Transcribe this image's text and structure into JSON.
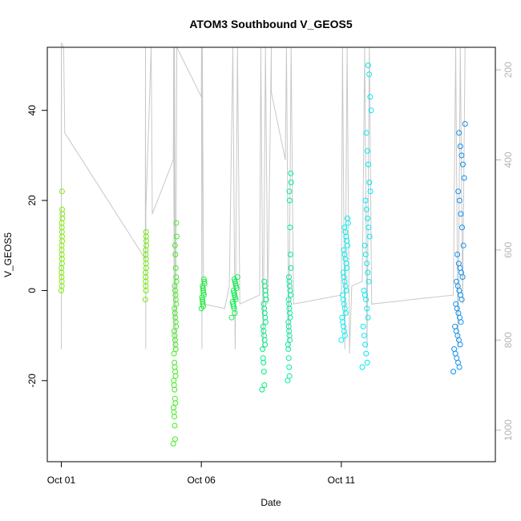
{
  "chart_data": {
    "type": "scatter",
    "title": "ATOM3 Southbound V_GEOS5",
    "xlabel": "Date",
    "ylabel": "V_GEOS5",
    "x_axis": {
      "type": "date",
      "range": [
        "2016-09-30T12:00",
        "2016-10-16T12:00"
      ],
      "ticks": [
        {
          "date": "2016-10-01",
          "label": "Oct 01"
        },
        {
          "date": "2016-10-06",
          "label": "Oct 06"
        },
        {
          "date": "2016-10-11",
          "label": "Oct 11"
        }
      ]
    },
    "y_axis": {
      "range": [
        -38,
        54
      ],
      "ticks": [
        -20,
        0,
        20,
        40
      ]
    },
    "y_axis_right": {
      "quantity": "pressure",
      "range": [
        1070,
        150
      ],
      "ticks": [
        200,
        400,
        600,
        800,
        1000
      ],
      "color": "#b4b4b4"
    },
    "grid": false,
    "legend": "none",
    "pressure_trace": {
      "color": "#c8c8c8",
      "points": [
        [
          "2016-10-01T00:00",
          150
        ],
        [
          "2016-10-01T00:05",
          820
        ],
        [
          "2016-10-01T00:10",
          140
        ],
        [
          "2016-10-01T02:00",
          150
        ],
        [
          "2016-10-01T03:00",
          340
        ],
        [
          "2016-10-04T00:00",
          620
        ],
        [
          "2016-10-04T00:10",
          150
        ],
        [
          "2016-10-04T00:20",
          820
        ],
        [
          "2016-10-04T00:30",
          510
        ],
        [
          "2016-10-04T05:00",
          150
        ],
        [
          "2016-10-04T06:00",
          520
        ],
        [
          "2016-10-05T00:00",
          400
        ],
        [
          "2016-10-05T00:20",
          150
        ],
        [
          "2016-10-05T00:40",
          820
        ],
        [
          "2016-10-05T01:00",
          150
        ],
        [
          "2016-10-05T02:00",
          820
        ],
        [
          "2016-10-05T03:00",
          150
        ],
        [
          "2016-10-06T00:00",
          260
        ],
        [
          "2016-10-06T00:10",
          150
        ],
        [
          "2016-10-06T00:30",
          820
        ],
        [
          "2016-10-06T00:50",
          150
        ],
        [
          "2016-10-06T02:00",
          720
        ],
        [
          "2016-10-06T20:00",
          730
        ],
        [
          "2016-10-07T00:00",
          680
        ],
        [
          "2016-10-07T03:00",
          150
        ],
        [
          "2016-10-07T05:00",
          820
        ],
        [
          "2016-10-07T07:00",
          150
        ],
        [
          "2016-10-07T09:00",
          720
        ],
        [
          "2016-10-08T02:00",
          700
        ],
        [
          "2016-10-08T03:00",
          150
        ],
        [
          "2016-10-08T05:00",
          820
        ],
        [
          "2016-10-08T07:00",
          150
        ],
        [
          "2016-10-08T09:00",
          720
        ],
        [
          "2016-10-08T12:00",
          150
        ],
        [
          "2016-10-08T12:00",
          250
        ],
        [
          "2016-10-09T00:00",
          400
        ],
        [
          "2016-10-09T01:00",
          150
        ],
        [
          "2016-10-09T03:00",
          820
        ],
        [
          "2016-10-09T05:00",
          150
        ],
        [
          "2016-10-09T07:00",
          720
        ],
        [
          "2016-10-11T00:00",
          700
        ],
        [
          "2016-10-11T01:00",
          150
        ],
        [
          "2016-10-11T03:00",
          820
        ],
        [
          "2016-10-11T05:00",
          150
        ],
        [
          "2016-10-11T07:00",
          830
        ],
        [
          "2016-10-11T09:00",
          680
        ],
        [
          "2016-10-11T18:00",
          670
        ],
        [
          "2016-10-11T20:00",
          150
        ],
        [
          "2016-10-11T22:00",
          820
        ],
        [
          "2016-10-12T00:00",
          150
        ],
        [
          "2016-10-12T02:00",
          720
        ],
        [
          "2016-10-15T00:00",
          700
        ],
        [
          "2016-10-15T02:00",
          150
        ],
        [
          "2016-10-15T04:00",
          820
        ],
        [
          "2016-10-15T06:00",
          150
        ],
        [
          "2016-10-15T08:00",
          720
        ],
        [
          "2016-10-15T10:00",
          150
        ]
      ]
    },
    "series": [
      {
        "color": "#80ee00",
        "x_range": [
          "2016-10-01T00:00",
          "2016-10-01T01:00"
        ],
        "y": [
          0,
          1,
          2,
          3,
          4,
          5,
          6,
          7,
          8,
          9,
          10,
          11,
          12,
          13,
          14,
          15,
          16,
          17,
          18,
          22
        ]
      },
      {
        "color": "#6fec00",
        "x_range": [
          "2016-10-04T00:00",
          "2016-10-04T01:00"
        ],
        "y": [
          -2,
          0,
          1,
          2,
          3,
          4,
          5,
          6,
          7,
          8,
          9,
          10,
          11,
          12,
          13
        ]
      },
      {
        "color": "#40ee20",
        "x_range": [
          "2016-10-05T00:00",
          "2016-10-05T03:00"
        ],
        "y": [
          -34,
          -33,
          -30,
          -28,
          -27,
          -26,
          -25,
          -24,
          -22,
          -21,
          -20,
          -19,
          -18,
          -17,
          -16,
          -14,
          -13,
          -12,
          -11,
          -10,
          -9,
          -8,
          -7,
          -6,
          -5,
          -4,
          -3,
          -2,
          -1,
          0,
          1,
          2,
          3,
          5,
          8,
          10,
          12,
          15
        ]
      },
      {
        "color": "#20ee40",
        "x_range": [
          "2016-10-06T00:00",
          "2016-10-06T03:00"
        ],
        "y": [
          -4,
          -3.5,
          -3,
          -2.5,
          -2,
          -1.5,
          -1,
          -0.5,
          0,
          0.5,
          1,
          1.5,
          2,
          2.5
        ]
      },
      {
        "color": "#10ee50",
        "x_range": [
          "2016-10-07T02:00",
          "2016-10-07T07:00"
        ],
        "y": [
          -6,
          -5,
          -4,
          -3.5,
          -3,
          -2.5,
          -2,
          -1.5,
          -1,
          -0.5,
          0,
          0.5,
          1,
          1.5,
          2,
          2.5,
          3
        ]
      },
      {
        "color": "#00ec80",
        "x_range": [
          "2016-10-08T04:00",
          "2016-10-08T08:00"
        ],
        "y": [
          -22,
          -21,
          -18,
          -16,
          -15,
          -13,
          -12,
          -11,
          -10,
          -9,
          -8,
          -7,
          -6,
          -5,
          -4,
          -3,
          -2,
          -1,
          0,
          1,
          2
        ]
      },
      {
        "color": "#00eca0",
        "x_range": [
          "2016-10-09T02:00",
          "2016-10-09T05:00"
        ],
        "y": [
          -20,
          -19,
          -17,
          -15,
          -13,
          -12,
          -11,
          -10,
          -9,
          -8,
          -7,
          -6,
          -5,
          -4,
          -3,
          -2,
          -1,
          0,
          1,
          2,
          3,
          5,
          8,
          14,
          20,
          22,
          24,
          26
        ]
      },
      {
        "color": "#00f0f0",
        "x_range": [
          "2016-10-11T00:00",
          "2016-10-11T06:00"
        ],
        "y": [
          -11,
          -10,
          -9,
          -8,
          -7,
          -6,
          -5,
          -4,
          -3,
          -2,
          -1,
          0,
          1,
          2,
          3,
          4,
          5,
          6,
          7,
          8,
          9,
          10,
          11,
          12,
          13,
          14,
          15,
          16
        ]
      },
      {
        "color": "#00e8f4",
        "x_range": [
          "2016-10-11T18:00",
          "2016-10-12T02:00"
        ],
        "y": [
          -17,
          -16,
          -14,
          -12,
          -10,
          -8,
          -6,
          -4,
          -2,
          -1,
          0,
          2,
          4,
          6,
          8,
          10,
          12,
          14,
          16,
          18,
          20,
          22,
          24,
          28,
          31,
          35,
          40,
          43,
          48,
          50
        ]
      },
      {
        "color": "#1090f0",
        "x_range": [
          "2016-10-15T00:00",
          "2016-10-15T10:00"
        ],
        "y": [
          -18,
          -17,
          -16,
          -15,
          -14,
          -13,
          -12,
          -11,
          -10,
          -9,
          -8,
          -7,
          -6,
          -5,
          -4,
          -3,
          -2,
          -1,
          0,
          1,
          2,
          3,
          4,
          5,
          6,
          8,
          10,
          14,
          17,
          20,
          22,
          25,
          28,
          30,
          32,
          35,
          37
        ]
      }
    ]
  }
}
